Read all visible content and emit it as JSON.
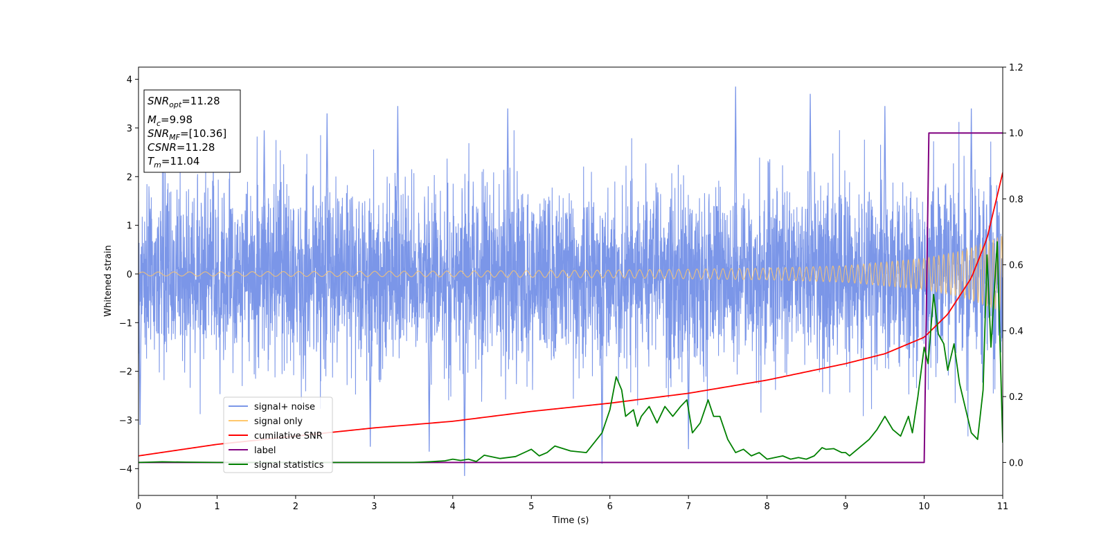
{
  "chart_data": {
    "type": "line",
    "xlabel": "Time (s)",
    "ylabel": "Whitened strain",
    "xlim": [
      0,
      11
    ],
    "ylim_left": [
      -4.55,
      4.25
    ],
    "ylim_right": [
      -0.1,
      1.2
    ],
    "x_ticks": [
      0,
      1,
      2,
      3,
      4,
      5,
      6,
      7,
      8,
      9,
      10,
      11
    ],
    "x_tick_labels": [
      "0",
      "1",
      "2",
      "3",
      "4",
      "5",
      "6",
      "7",
      "8",
      "9",
      "10",
      "11"
    ],
    "y_ticks_left": [
      -4,
      -3,
      -2,
      -1,
      0,
      1,
      2,
      3,
      4
    ],
    "y_tick_labels_left": [
      "−4",
      "−3",
      "−2",
      "−1",
      "0",
      "1",
      "2",
      "3",
      "4"
    ],
    "y_ticks_right": [
      0.0,
      0.2,
      0.4,
      0.6,
      0.8,
      1.0,
      1.2
    ],
    "y_tick_labels_right": [
      "0.0",
      "0.2",
      "0.4",
      "0.6",
      "0.8",
      "1.0",
      "1.2"
    ],
    "grid": false,
    "legend_position": "lower-left",
    "legend": [
      {
        "label": "signal+ noise",
        "color": "#7b96e8"
      },
      {
        "label": "signal only",
        "color": "#ffc76b"
      },
      {
        "label": "cumilative SNR",
        "color": "#ff0000"
      },
      {
        "label": "label",
        "color": "#800080"
      },
      {
        "label": "signal statistics",
        "color": "#008000"
      }
    ],
    "annotation": {
      "lines": [
        {
          "sym": "SNR",
          "sub": "opt",
          "val": "=11.28"
        },
        {
          "sym": "M",
          "sub": "c",
          "val": "=9.98"
        },
        {
          "sym": "SNR",
          "sub": "MF",
          "val": "=[10.36]"
        },
        {
          "sym": "CSNR",
          "sub": "",
          "val": "=11.28"
        },
        {
          "sym": "T",
          "sub": "m",
          "val": "=11.04"
        }
      ]
    },
    "series": [
      {
        "name": "signal+ noise",
        "axis": "left",
        "color": "#7b96e8",
        "noise_sigma": 1.0,
        "peak_extremes": [
          [
            0.02,
            -3.1
          ],
          [
            1.6,
            2.95
          ],
          [
            2.4,
            3.3
          ],
          [
            2.95,
            -3.55
          ],
          [
            3.3,
            3.45
          ],
          [
            3.7,
            -3.65
          ],
          [
            4.15,
            -4.15
          ],
          [
            4.7,
            3.4
          ],
          [
            5.9,
            -3.9
          ],
          [
            7.0,
            -3.6
          ],
          [
            7.6,
            3.85
          ],
          [
            8.55,
            3.7
          ],
          [
            9.5,
            3.45
          ],
          [
            10.6,
            3.4
          ]
        ]
      },
      {
        "name": "signal only",
        "axis": "left",
        "color": "#ffc76b",
        "envelope": [
          [
            0,
            0.04
          ],
          [
            2,
            0.05
          ],
          [
            4,
            0.06
          ],
          [
            6,
            0.08
          ],
          [
            8,
            0.12
          ],
          [
            9,
            0.17
          ],
          [
            10,
            0.32
          ],
          [
            10.5,
            0.48
          ],
          [
            11,
            0.78
          ]
        ]
      },
      {
        "name": "cumilative SNR",
        "axis": "right",
        "color": "#ff0000",
        "x": [
          0,
          1,
          2,
          3,
          4,
          5,
          6,
          7,
          8,
          9,
          9.5,
          10,
          10.3,
          10.6,
          10.8,
          11
        ],
        "y": [
          0.02,
          0.055,
          0.08,
          0.105,
          0.125,
          0.155,
          0.18,
          0.21,
          0.25,
          0.3,
          0.33,
          0.38,
          0.45,
          0.56,
          0.68,
          0.88
        ]
      },
      {
        "name": "label",
        "axis": "right",
        "color": "#800080",
        "x": [
          0,
          10.0,
          10.06,
          11.0
        ],
        "y": [
          0.0,
          0.0,
          1.0,
          1.0
        ]
      },
      {
        "name": "signal statistics",
        "axis": "right",
        "color": "#008000",
        "x": [
          0,
          0.3,
          0.6,
          1,
          1.5,
          2,
          2.5,
          3,
          3.5,
          3.7,
          3.9,
          4.0,
          4.1,
          4.2,
          4.3,
          4.4,
          4.6,
          4.8,
          5.0,
          5.1,
          5.2,
          5.3,
          5.5,
          5.7,
          5.8,
          5.9,
          6.0,
          6.08,
          6.15,
          6.2,
          6.3,
          6.35,
          6.4,
          6.5,
          6.6,
          6.7,
          6.8,
          6.9,
          6.98,
          7.05,
          7.15,
          7.25,
          7.32,
          7.4,
          7.5,
          7.6,
          7.7,
          7.8,
          7.9,
          8.0,
          8.1,
          8.2,
          8.3,
          8.4,
          8.5,
          8.6,
          8.7,
          8.75,
          8.85,
          8.95,
          9.0,
          9.05,
          9.15,
          9.2,
          9.3,
          9.4,
          9.5,
          9.55,
          9.6,
          9.7,
          9.8,
          9.85,
          9.92,
          10.0,
          10.05,
          10.12,
          10.18,
          10.25,
          10.3,
          10.38,
          10.45,
          10.52,
          10.6,
          10.68,
          10.75,
          10.8,
          10.85,
          10.93,
          10.97,
          11.0
        ],
        "y": [
          0.0,
          0.002,
          0.001,
          0.0,
          0.0,
          0.0,
          0.0,
          0.0,
          0.0,
          0.002,
          0.005,
          0.01,
          0.006,
          0.01,
          0.003,
          0.022,
          0.012,
          0.018,
          0.04,
          0.02,
          0.03,
          0.05,
          0.035,
          0.03,
          0.06,
          0.09,
          0.16,
          0.26,
          0.22,
          0.14,
          0.16,
          0.11,
          0.14,
          0.17,
          0.12,
          0.17,
          0.14,
          0.17,
          0.19,
          0.09,
          0.12,
          0.19,
          0.14,
          0.14,
          0.07,
          0.03,
          0.04,
          0.02,
          0.03,
          0.01,
          0.015,
          0.02,
          0.01,
          0.015,
          0.01,
          0.02,
          0.045,
          0.04,
          0.042,
          0.03,
          0.03,
          0.02,
          0.04,
          0.05,
          0.07,
          0.1,
          0.14,
          0.12,
          0.1,
          0.08,
          0.14,
          0.09,
          0.2,
          0.35,
          0.3,
          0.51,
          0.39,
          0.36,
          0.28,
          0.36,
          0.24,
          0.17,
          0.09,
          0.07,
          0.22,
          0.63,
          0.35,
          0.67,
          0.32,
          0.06
        ]
      }
    ]
  }
}
